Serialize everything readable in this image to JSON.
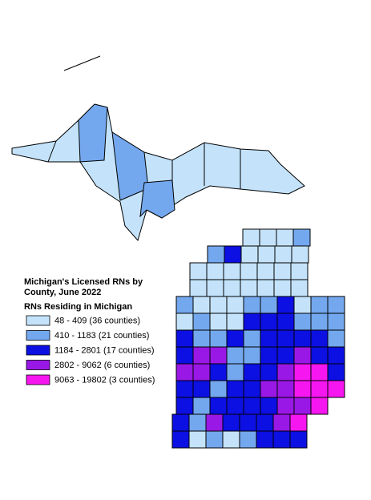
{
  "title": "Michigan's Licensed RNs by County, June 2022",
  "legend": {
    "title": "RNs Residing in Michigan",
    "items": [
      {
        "label": "48 - 409 (36 counties)",
        "color": "#c4e3fb"
      },
      {
        "label": "410 - 1183 (21 counties)",
        "color": "#74a8ee"
      },
      {
        "label": "1184 - 2801 (17 counties)",
        "color": "#0c10e2"
      },
      {
        "label": "2802 - 9062 (6 counties)",
        "color": "#9a18e6"
      },
      {
        "label": "9063 - 19802 (3 counties)",
        "color": "#f616f0"
      }
    ]
  }
}
